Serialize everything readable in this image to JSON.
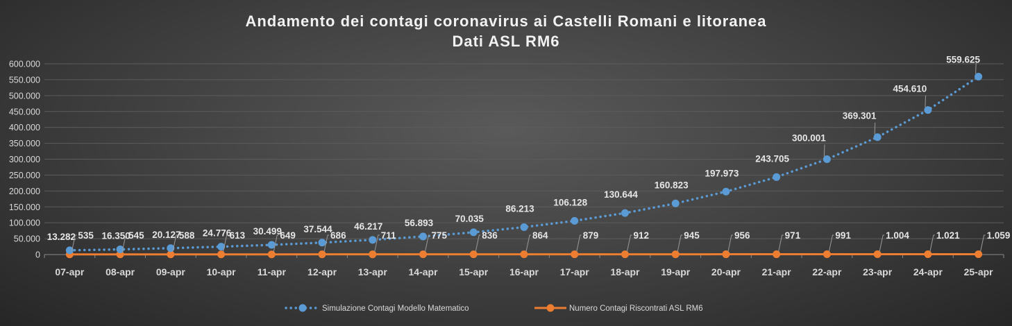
{
  "chart_data": {
    "type": "line",
    "title": "Andamento dei contagi coronavirus ai Castelli Romani e litoranea",
    "subtitle": "Dati ASL RM6",
    "xlabel": "",
    "ylabel": "",
    "ylim": [
      0,
      600000
    ],
    "ytick_step": 50000,
    "yticks": [
      "0",
      "50.000",
      "100.000",
      "150.000",
      "200.000",
      "250.000",
      "300.000",
      "350.000",
      "400.000",
      "450.000",
      "500.000",
      "550.000",
      "600.000"
    ],
    "grid": true,
    "legend_position": "bottom",
    "categories": [
      "07-apr",
      "08-apr",
      "09-apr",
      "10-apr",
      "11-apr",
      "12-apr",
      "13-apr",
      "14-apr",
      "15-apr",
      "16-apr",
      "17-apr",
      "18-apr",
      "19-apr",
      "20-apr",
      "21-apr",
      "22-apr",
      "23-apr",
      "24-apr",
      "25-apr"
    ],
    "series": [
      {
        "name": "Simulazione Contagi Modello Matematico",
        "style": "dotted-line-markers",
        "color": "#5b9bd5",
        "values": [
          13282,
          16350,
          20127,
          24776,
          30499,
          37544,
          46217,
          56893,
          70035,
          86213,
          106128,
          130644,
          160823,
          197973,
          243705,
          300001,
          369301,
          454610,
          559625
        ],
        "labels": [
          "13.282",
          "16.350",
          "20.127",
          "24.776",
          "30.499",
          "37.544",
          "46.217",
          "56.893",
          "70.035",
          "86.213",
          "106.128",
          "130.644",
          "160.823",
          "197.973",
          "243.705",
          "300.001",
          "369.301",
          "454.610",
          "559.625"
        ]
      },
      {
        "name": "Numero Contagi Riscontrati ASL RM6",
        "style": "solid-line-markers",
        "color": "#ed7d31",
        "values": [
          535,
          545,
          588,
          613,
          649,
          686,
          711,
          775,
          836,
          864,
          879,
          912,
          945,
          956,
          971,
          991,
          1004,
          1021,
          1059
        ],
        "labels": [
          "535",
          "545",
          "588",
          "613",
          "649",
          "686",
          "711",
          "775",
          "836",
          "864",
          "879",
          "912",
          "945",
          "956",
          "971",
          "991",
          "1.004",
          "1.021",
          "1.059"
        ]
      }
    ]
  }
}
